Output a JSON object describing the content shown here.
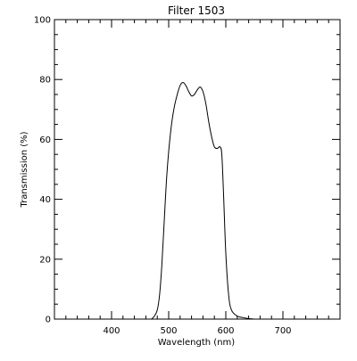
{
  "chart_data": {
    "type": "line",
    "title": "Filter 1503",
    "xlabel": "Wavelength (nm)",
    "ylabel": "Transmission (%)",
    "xlim": [
      300,
      800
    ],
    "ylim": [
      0,
      100
    ],
    "grid": false,
    "legend": "none",
    "x_ticks": [
      {
        "value": 400,
        "label": "400"
      },
      {
        "value": 500,
        "label": "500"
      },
      {
        "value": 600,
        "label": "600"
      },
      {
        "value": 700,
        "label": "700"
      }
    ],
    "y_ticks": [
      {
        "value": 0,
        "label": "0"
      },
      {
        "value": 20,
        "label": "20"
      },
      {
        "value": 40,
        "label": "40"
      },
      {
        "value": 60,
        "label": "60"
      },
      {
        "value": 80,
        "label": "80"
      },
      {
        "value": 100,
        "label": "100"
      }
    ],
    "series": [
      {
        "color": "#000000",
        "x": [
          470,
          475,
          480,
          484,
          488,
          492,
          496,
          500,
          505,
          510,
          515,
          520,
          525,
          530,
          535,
          540,
          545,
          550,
          555,
          560,
          565,
          570,
          575,
          580,
          585,
          590,
          593,
          596,
          600,
          605,
          610,
          620,
          630,
          640,
          650
        ],
        "y": [
          0,
          1,
          3,
          8,
          18,
          32,
          46,
          56,
          65,
          71,
          75,
          78,
          79,
          78,
          76,
          74.5,
          75,
          76.5,
          77.5,
          76,
          72,
          66,
          61,
          57.5,
          57,
          57.5,
          55,
          42,
          22,
          8,
          3,
          1,
          0.5,
          0.2,
          0
        ]
      }
    ]
  }
}
